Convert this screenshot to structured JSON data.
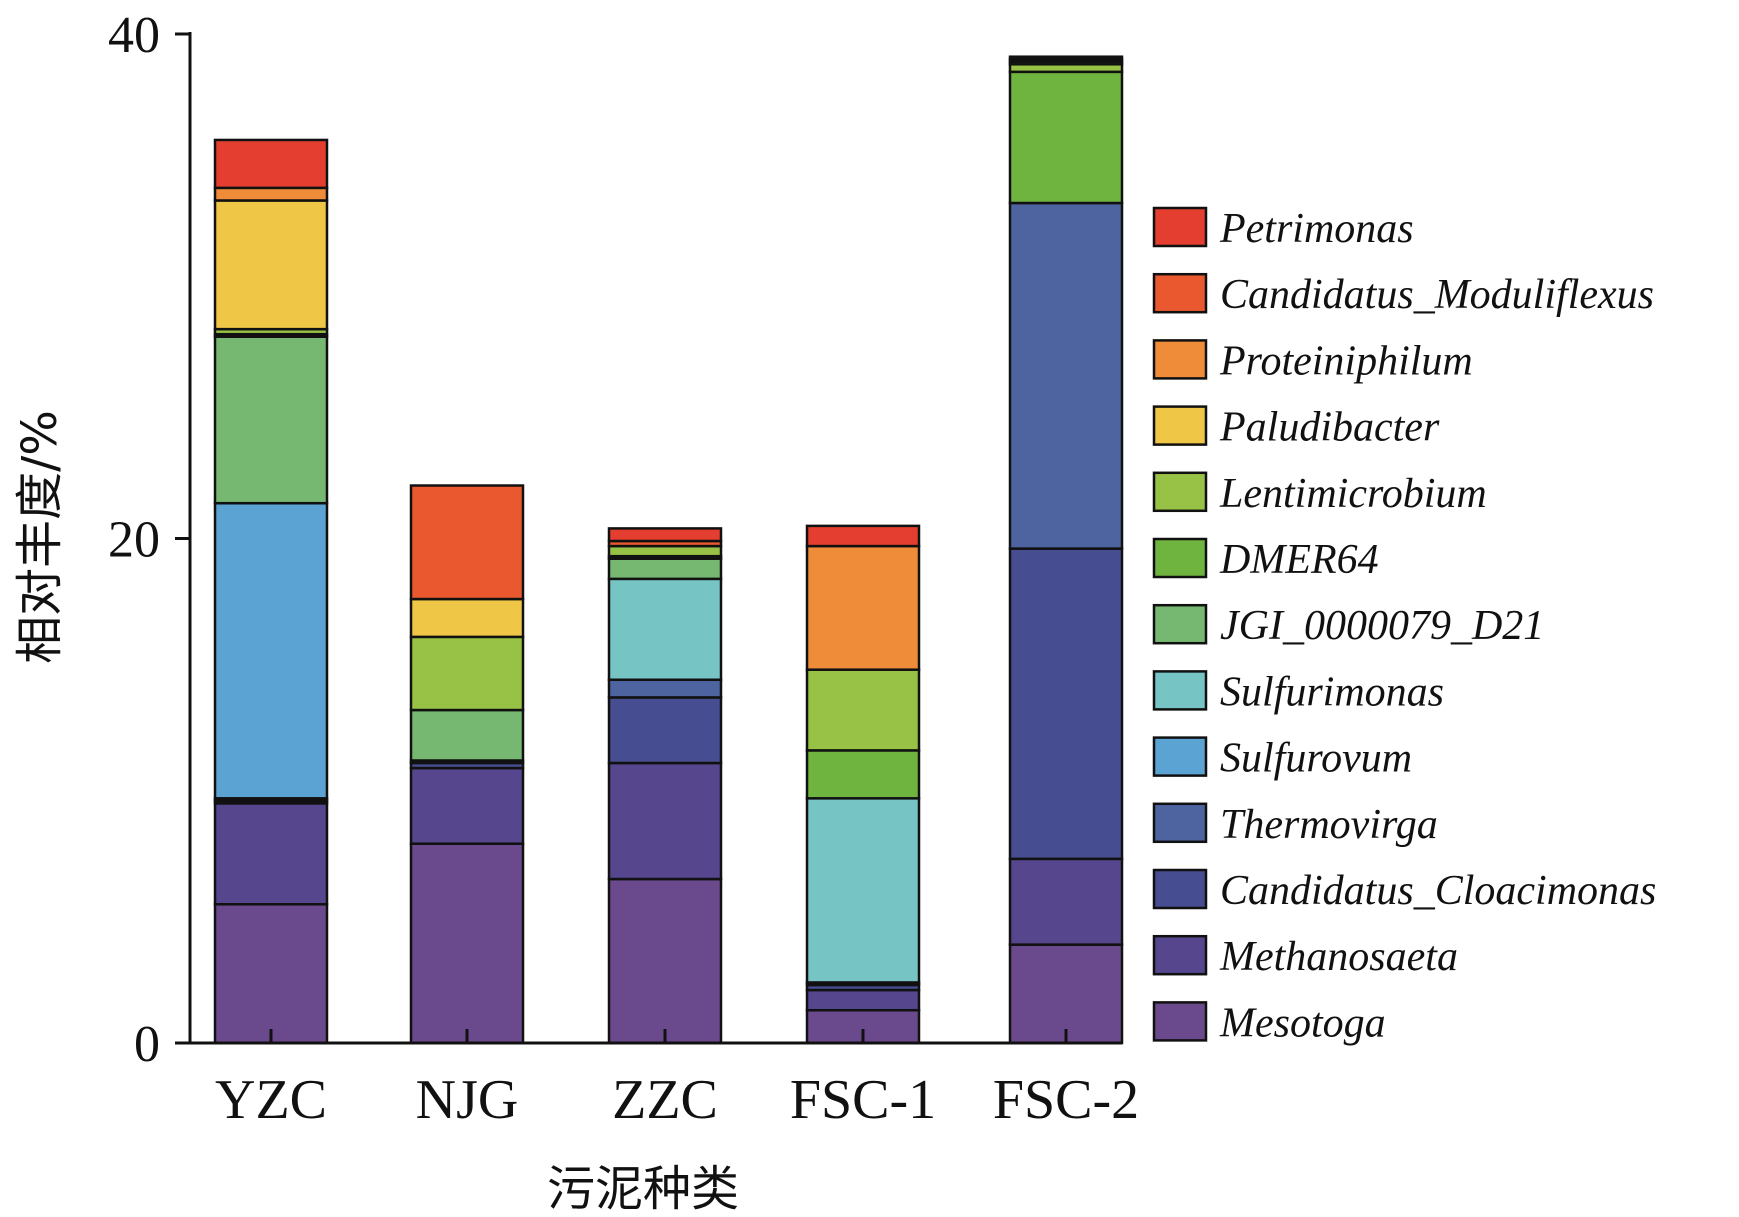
{
  "chart_data": {
    "type": "bar",
    "stacked": true,
    "categories": [
      "YZC",
      "NJG",
      "ZZC",
      "FSC-1",
      "FSC-2"
    ],
    "xlabel": "污泥种类",
    "ylabel": "相对丰度/%",
    "ylim": [
      0,
      40
    ],
    "yticks": [
      0,
      20,
      40
    ],
    "legend_position": "right",
    "series": [
      {
        "name": "Mesotoga",
        "color": "#6a4a8c",
        "values": [
          5.5,
          7.9,
          6.5,
          1.3,
          3.9
        ]
      },
      {
        "name": "Methanosaeta",
        "color": "#56468e",
        "values": [
          4.0,
          3.0,
          4.6,
          0.8,
          3.4
        ]
      },
      {
        "name": "Candidatus_Cloacimonas",
        "color": "#474d91",
        "values": [
          0.1,
          0.2,
          2.6,
          0.2,
          12.3
        ]
      },
      {
        "name": "Thermovirga",
        "color": "#4e64a0",
        "values": [
          0.1,
          0.1,
          0.7,
          0.1,
          13.7
        ]
      },
      {
        "name": "Sulfurovum",
        "color": "#5ba3d3",
        "values": [
          11.7,
          0.0,
          0.0,
          0.0,
          0.0
        ]
      },
      {
        "name": "Sulfurimonas",
        "color": "#77c4c4",
        "values": [
          0.0,
          0.0,
          4.0,
          7.3,
          0.0
        ]
      },
      {
        "name": "JGI_0000079_D21",
        "color": "#76b872",
        "values": [
          6.6,
          2.0,
          0.8,
          0.0,
          0.0
        ]
      },
      {
        "name": "DMER64",
        "color": "#6fb43f",
        "values": [
          0.1,
          0.0,
          0.1,
          1.9,
          5.2
        ]
      },
      {
        "name": "Lentimicrobium",
        "color": "#98c246",
        "values": [
          0.2,
          2.9,
          0.4,
          3.2,
          0.3
        ]
      },
      {
        "name": "Paludibacter",
        "color": "#efc645",
        "values": [
          5.1,
          1.5,
          0.0,
          0.0,
          0.0
        ]
      },
      {
        "name": "Proteiniphilum",
        "color": "#ef8c3a",
        "values": [
          0.5,
          0.0,
          0.0,
          4.9,
          0.1
        ]
      },
      {
        "name": "Candidatus_Moduliflexus",
        "color": "#e9582f",
        "values": [
          0.0,
          4.5,
          0.2,
          0.0,
          0.1
        ]
      },
      {
        "name": "Petrimonas",
        "color": "#e43e30",
        "values": [
          1.9,
          0.0,
          0.5,
          0.8,
          0.1
        ]
      }
    ]
  }
}
